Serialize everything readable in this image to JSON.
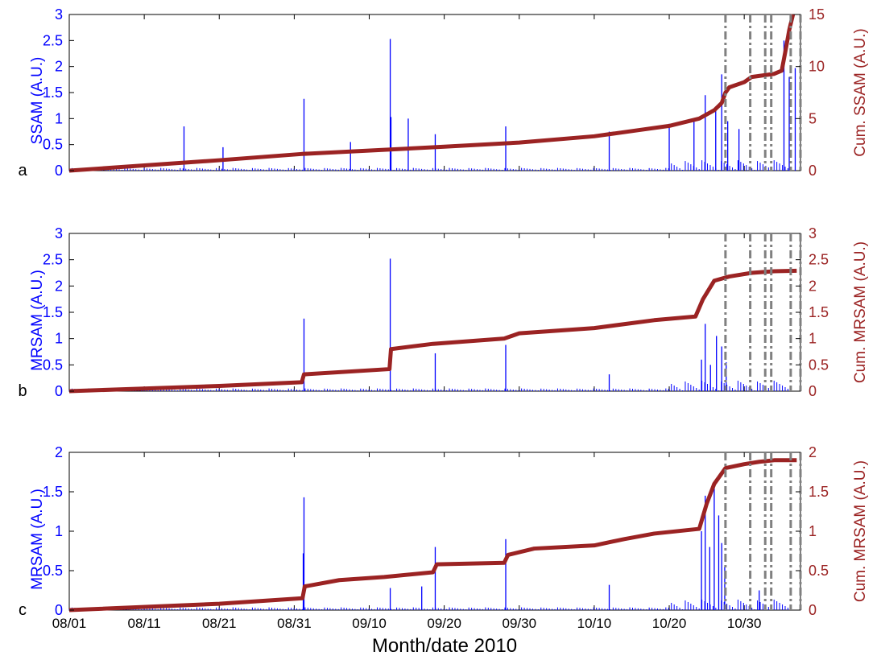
{
  "figure": {
    "xlabel": "Month/date  2010",
    "xticks": [
      "08/01",
      "08/11",
      "08/21",
      "08/31",
      "09/10",
      "09/20",
      "09/30",
      "10/10",
      "10/20",
      "10/30"
    ]
  },
  "colors": {
    "spikes": "#0000ff",
    "cumulative": "#9b2323",
    "event_lines": "#808080",
    "axis": "#000000"
  },
  "chart_data": [
    {
      "panel": "a",
      "type": "bar",
      "ylabel_left": "SSAM (A.U.)",
      "ylabel_right": "Cum. SSAM (A.U.)",
      "x_range_days": [
        0,
        97.5
      ],
      "ylim_left": [
        0,
        3
      ],
      "ylim_right": [
        0,
        15
      ],
      "yticks_left": [
        "0",
        "0.5",
        "1",
        "1.5",
        "2",
        "2.5",
        "3"
      ],
      "yticks_right": [
        "0",
        "5",
        "10",
        "15"
      ],
      "event_dates_days": [
        87.5,
        90.8,
        92.8,
        93.6,
        96.2,
        97.5
      ],
      "spikes": [
        {
          "x": 15.3,
          "y": 0.85
        },
        {
          "x": 20.5,
          "y": 0.45
        },
        {
          "x": 31.3,
          "y": 1.38
        },
        {
          "x": 37.5,
          "y": 0.55
        },
        {
          "x": 42.8,
          "y": 2.53
        },
        {
          "x": 42.9,
          "y": 1.03
        },
        {
          "x": 45.2,
          "y": 1.0
        },
        {
          "x": 48.8,
          "y": 0.7
        },
        {
          "x": 58.2,
          "y": 0.85
        },
        {
          "x": 72.0,
          "y": 0.75
        },
        {
          "x": 80.0,
          "y": 0.9
        },
        {
          "x": 83.3,
          "y": 1.0
        },
        {
          "x": 84.8,
          "y": 1.45
        },
        {
          "x": 86.2,
          "y": 1.2
        },
        {
          "x": 87.0,
          "y": 1.85
        },
        {
          "x": 87.8,
          "y": 0.95
        },
        {
          "x": 89.3,
          "y": 0.8
        },
        {
          "x": 95.3,
          "y": 2.5
        },
        {
          "x": 96.0,
          "y": 1.8
        },
        {
          "x": 96.8,
          "y": 1.97
        }
      ],
      "cumulative": [
        {
          "x": 0,
          "y": 0
        },
        {
          "x": 10,
          "y": 0.5
        },
        {
          "x": 20,
          "y": 1.0
        },
        {
          "x": 31,
          "y": 1.6
        },
        {
          "x": 42,
          "y": 2.0
        },
        {
          "x": 50,
          "y": 2.3
        },
        {
          "x": 60,
          "y": 2.7
        },
        {
          "x": 70,
          "y": 3.3
        },
        {
          "x": 76,
          "y": 3.9
        },
        {
          "x": 80,
          "y": 4.3
        },
        {
          "x": 84,
          "y": 5.0
        },
        {
          "x": 86,
          "y": 5.8
        },
        {
          "x": 87,
          "y": 6.5
        },
        {
          "x": 87.5,
          "y": 7.5
        },
        {
          "x": 88,
          "y": 8.0
        },
        {
          "x": 90,
          "y": 8.5
        },
        {
          "x": 91,
          "y": 9.0
        },
        {
          "x": 94,
          "y": 9.3
        },
        {
          "x": 95,
          "y": 9.6
        },
        {
          "x": 95.5,
          "y": 11.5
        },
        {
          "x": 96,
          "y": 13.5
        },
        {
          "x": 96.5,
          "y": 15
        }
      ]
    },
    {
      "panel": "b",
      "type": "bar",
      "ylabel_left": "MRSAM (A.U.)",
      "ylabel_right": "Cum. MRSAM (A.U.)",
      "x_range_days": [
        0,
        97.5
      ],
      "ylim_left": [
        0,
        3
      ],
      "ylim_right": [
        0,
        3
      ],
      "yticks_left": [
        "0",
        "0.5",
        "1",
        "1.5",
        "2",
        "2.5",
        "3"
      ],
      "yticks_right": [
        "0",
        "0.5",
        "1",
        "1.5",
        "2",
        "2.5",
        "3"
      ],
      "event_dates_days": [
        87.5,
        90.8,
        92.8,
        93.6,
        96.2,
        97.5
      ],
      "spikes": [
        {
          "x": 31.3,
          "y": 1.38
        },
        {
          "x": 42.8,
          "y": 2.52
        },
        {
          "x": 48.8,
          "y": 0.72
        },
        {
          "x": 58.2,
          "y": 0.88
        },
        {
          "x": 72.0,
          "y": 0.32
        },
        {
          "x": 84.3,
          "y": 0.6
        },
        {
          "x": 84.8,
          "y": 1.28
        },
        {
          "x": 85.5,
          "y": 0.5
        },
        {
          "x": 86.3,
          "y": 1.05
        },
        {
          "x": 87.0,
          "y": 0.85
        },
        {
          "x": 87.6,
          "y": 0.55
        }
      ],
      "cumulative": [
        {
          "x": 0,
          "y": 0
        },
        {
          "x": 20,
          "y": 0.1
        },
        {
          "x": 31,
          "y": 0.17
        },
        {
          "x": 31.3,
          "y": 0.32
        },
        {
          "x": 42.7,
          "y": 0.42
        },
        {
          "x": 42.9,
          "y": 0.8
        },
        {
          "x": 48.5,
          "y": 0.9
        },
        {
          "x": 58,
          "y": 1.0
        },
        {
          "x": 60,
          "y": 1.1
        },
        {
          "x": 70,
          "y": 1.2
        },
        {
          "x": 78,
          "y": 1.35
        },
        {
          "x": 83.5,
          "y": 1.42
        },
        {
          "x": 84.5,
          "y": 1.75
        },
        {
          "x": 86,
          "y": 2.1
        },
        {
          "x": 88,
          "y": 2.18
        },
        {
          "x": 91,
          "y": 2.25
        },
        {
          "x": 94,
          "y": 2.28
        },
        {
          "x": 97,
          "y": 2.29
        }
      ]
    },
    {
      "panel": "c",
      "type": "bar",
      "ylabel_left": "MRSAM (A.U.)",
      "ylabel_right": "Cum. MRSAM (A.U.)",
      "x_range_days": [
        0,
        97.5
      ],
      "ylim_left": [
        0,
        2
      ],
      "ylim_right": [
        0,
        2
      ],
      "yticks_left": [
        "0",
        "0.5",
        "1",
        "1.5",
        "2"
      ],
      "yticks_right": [
        "0",
        "0.5",
        "1",
        "1.5",
        "2"
      ],
      "event_dates_days": [
        87.5,
        90.8,
        92.8,
        93.6,
        96.2,
        97.5
      ],
      "spikes": [
        {
          "x": 31.3,
          "y": 1.43
        },
        {
          "x": 31.2,
          "y": 0.72
        },
        {
          "x": 42.8,
          "y": 0.28
        },
        {
          "x": 47.0,
          "y": 0.3
        },
        {
          "x": 48.8,
          "y": 0.8
        },
        {
          "x": 58.2,
          "y": 0.9
        },
        {
          "x": 72.0,
          "y": 0.32
        },
        {
          "x": 84.3,
          "y": 1.0
        },
        {
          "x": 84.8,
          "y": 1.45
        },
        {
          "x": 85.4,
          "y": 0.8
        },
        {
          "x": 86.0,
          "y": 1.55
        },
        {
          "x": 86.6,
          "y": 1.2
        },
        {
          "x": 87.0,
          "y": 0.85
        },
        {
          "x": 87.4,
          "y": 0.55
        },
        {
          "x": 92.0,
          "y": 0.25
        }
      ],
      "cumulative": [
        {
          "x": 0,
          "y": 0
        },
        {
          "x": 20,
          "y": 0.08
        },
        {
          "x": 31.1,
          "y": 0.15
        },
        {
          "x": 31.4,
          "y": 0.3
        },
        {
          "x": 36,
          "y": 0.38
        },
        {
          "x": 42,
          "y": 0.42
        },
        {
          "x": 48.5,
          "y": 0.48
        },
        {
          "x": 49,
          "y": 0.58
        },
        {
          "x": 58,
          "y": 0.6
        },
        {
          "x": 58.5,
          "y": 0.7
        },
        {
          "x": 62,
          "y": 0.78
        },
        {
          "x": 70,
          "y": 0.82
        },
        {
          "x": 74,
          "y": 0.9
        },
        {
          "x": 78,
          "y": 0.97
        },
        {
          "x": 84,
          "y": 1.03
        },
        {
          "x": 85,
          "y": 1.35
        },
        {
          "x": 86,
          "y": 1.6
        },
        {
          "x": 87.5,
          "y": 1.8
        },
        {
          "x": 90,
          "y": 1.85
        },
        {
          "x": 92,
          "y": 1.88
        },
        {
          "x": 94,
          "y": 1.9
        },
        {
          "x": 97,
          "y": 1.9
        }
      ]
    }
  ]
}
